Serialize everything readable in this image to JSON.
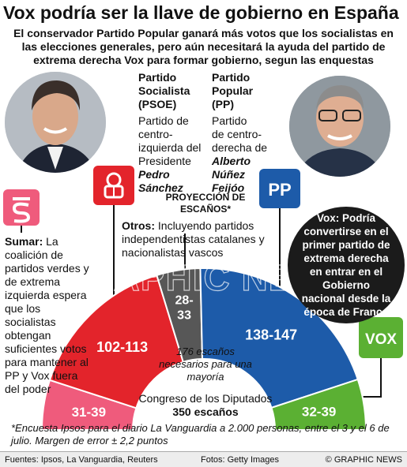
{
  "headline": "Vox podría ser la llave de gobierno en España",
  "subhead": "El conservador Partido Popular ganará más votos que los socialistas en las elecciones generales, pero aún necesitará la ayuda del partido de extrema derecha Vox para formar gobierno, segun las enquestas",
  "parties": {
    "psoe": {
      "title_lines": [
        "Partido",
        "Socialista",
        "(PSOE)"
      ],
      "desc_lines": [
        "Partido de",
        "centro-",
        "izquierda del",
        "Presidente"
      ],
      "leader_first": "Pedro",
      "leader_last": "Sánchez"
    },
    "pp": {
      "title_lines": [
        "Partido",
        "Popular",
        "(PP)"
      ],
      "desc_lines": [
        "Partido",
        "de centro-",
        "derecha de"
      ],
      "leader_first": "Alberto",
      "leader_mid": "Núñez",
      "leader_last": "Feijóo"
    },
    "sumar": {
      "label": "Sumar:",
      "text": "La coalición de partidos verdes y de extrema izquierda espera que los socialistas obtengan suficientes votos para mantener al PP y Vox fuera del poder"
    },
    "otros": {
      "label": "Otros:",
      "text": "Incluyendo partidos independentistas catalanes y nacionalistas vascos"
    },
    "vox": {
      "note": "Vox: Podría convertirse en el primer partido de extrema derecha en entrar en el Gobierno nacional desde la época de Franco"
    }
  },
  "logos": {
    "psoe": "rose-fist-icon",
    "pp": "PP",
    "sumar": "sumar-s-icon",
    "vox": "VOX"
  },
  "seat_projection_title": "PROYECCIÓN DE ESCAÑOS*",
  "majority_note": "176 escaños necesarios para una mayoría",
  "congress_line1": "Congreso de los Diputados",
  "congress_line2": "350 escaños",
  "footnote": "*Encuesta Ipsos para el diario La Vanguardia a 2.000 personas, entre el 3 y el 6 de julio. Margen de error ± 2,2 puntos",
  "footer": {
    "sources": "Fuentes: Ipsos, La Vanguardia, Reuters",
    "photos": "Fotos: Getty Images",
    "credit": "© GRAPHIC NEWS"
  },
  "watermark": "GRAPHIC NEWS",
  "colors": {
    "psoe": "#e3242b",
    "sumar": "#ef5b7c",
    "otros": "#575757",
    "pp": "#1d5ba9",
    "vox": "#5bb033"
  },
  "chart_data": {
    "type": "semicircle-parliament",
    "title": "PROYECCIÓN DE ESCAÑOS*",
    "total_seats": 350,
    "majority": 176,
    "series": [
      {
        "name": "Sumar",
        "label": "31-39",
        "min": 31,
        "max": 39,
        "color": "#ef5b7c"
      },
      {
        "name": "PSOE",
        "label": "102-113",
        "min": 102,
        "max": 113,
        "color": "#e3242b"
      },
      {
        "name": "Otros",
        "label": "28-33",
        "min": 28,
        "max": 33,
        "color": "#575757"
      },
      {
        "name": "PP",
        "label": "138-147",
        "min": 138,
        "max": 147,
        "color": "#1d5ba9"
      },
      {
        "name": "Vox",
        "label": "32-39",
        "min": 32,
        "max": 39,
        "color": "#5bb033"
      }
    ]
  }
}
